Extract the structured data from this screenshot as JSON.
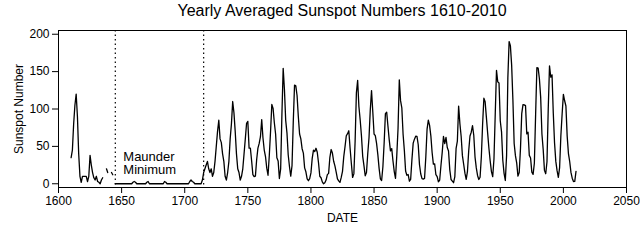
{
  "chart_data": {
    "type": "line",
    "title": "Yearly Averaged Sunspot Numbers 1610-2010",
    "xlabel": "DATE",
    "ylabel": "Sunspot Number",
    "color": "#000000",
    "grid": false,
    "xlim": [
      1600,
      2050
    ],
    "xticks": [
      1600,
      1650,
      1700,
      1750,
      1800,
      1850,
      1900,
      1950,
      2000,
      2050
    ],
    "ylim": [
      -5,
      205
    ],
    "yticks": [
      0,
      50,
      100,
      150,
      200
    ],
    "vlines": {
      "x": [
        1645,
        1715
      ],
      "line_style": "dotted"
    },
    "annotation": "Maunder\nMinimum",
    "x": [
      1610,
      1611,
      1612,
      1613,
      1614,
      1615,
      1616,
      1617,
      1618,
      1619,
      1620,
      1621,
      1622,
      1623,
      1624,
      1625,
      1626,
      1627,
      1628,
      1629,
      1630,
      1631,
      1632,
      1633,
      1634,
      1635,
      1636,
      1637,
      1638,
      1639,
      1640,
      1641,
      1642,
      1643,
      1644,
      1645,
      1646,
      1647,
      1648,
      1649,
      1650,
      1651,
      1652,
      1653,
      1654,
      1655,
      1656,
      1657,
      1658,
      1659,
      1660,
      1661,
      1662,
      1663,
      1664,
      1665,
      1666,
      1667,
      1668,
      1669,
      1670,
      1671,
      1672,
      1673,
      1674,
      1675,
      1676,
      1677,
      1678,
      1679,
      1680,
      1681,
      1682,
      1683,
      1684,
      1685,
      1686,
      1687,
      1688,
      1689,
      1690,
      1691,
      1692,
      1693,
      1694,
      1695,
      1696,
      1697,
      1698,
      1699,
      1700,
      1701,
      1702,
      1703,
      1704,
      1705,
      1706,
      1707,
      1708,
      1709,
      1710,
      1711,
      1712,
      1713,
      1714,
      1715,
      1716,
      1717,
      1718,
      1719,
      1720,
      1721,
      1722,
      1723,
      1724,
      1725,
      1726,
      1727,
      1728,
      1729,
      1730,
      1731,
      1732,
      1733,
      1734,
      1735,
      1736,
      1737,
      1738,
      1739,
      1740,
      1741,
      1742,
      1743,
      1744,
      1745,
      1746,
      1747,
      1748,
      1749,
      1750,
      1751,
      1752,
      1753,
      1754,
      1755,
      1756,
      1757,
      1758,
      1759,
      1760,
      1761,
      1762,
      1763,
      1764,
      1765,
      1766,
      1767,
      1768,
      1769,
      1770,
      1771,
      1772,
      1773,
      1774,
      1775,
      1776,
      1777,
      1778,
      1779,
      1780,
      1781,
      1782,
      1783,
      1784,
      1785,
      1786,
      1787,
      1788,
      1789,
      1790,
      1791,
      1792,
      1793,
      1794,
      1795,
      1796,
      1797,
      1798,
      1799,
      1800,
      1801,
      1802,
      1803,
      1804,
      1805,
      1806,
      1807,
      1808,
      1809,
      1810,
      1811,
      1812,
      1813,
      1814,
      1815,
      1816,
      1817,
      1818,
      1819,
      1820,
      1821,
      1822,
      1823,
      1824,
      1825,
      1826,
      1827,
      1828,
      1829,
      1830,
      1831,
      1832,
      1833,
      1834,
      1835,
      1836,
      1837,
      1838,
      1839,
      1840,
      1841,
      1842,
      1843,
      1844,
      1845,
      1846,
      1847,
      1848,
      1849,
      1850,
      1851,
      1852,
      1853,
      1854,
      1855,
      1856,
      1857,
      1858,
      1859,
      1860,
      1861,
      1862,
      1863,
      1864,
      1865,
      1866,
      1867,
      1868,
      1869,
      1870,
      1871,
      1872,
      1873,
      1874,
      1875,
      1876,
      1877,
      1878,
      1879,
      1880,
      1881,
      1882,
      1883,
      1884,
      1885,
      1886,
      1887,
      1888,
      1889,
      1890,
      1891,
      1892,
      1893,
      1894,
      1895,
      1896,
      1897,
      1898,
      1899,
      1900,
      1901,
      1902,
      1903,
      1904,
      1905,
      1906,
      1907,
      1908,
      1909,
      1910,
      1911,
      1912,
      1913,
      1914,
      1915,
      1916,
      1917,
      1918,
      1919,
      1920,
      1921,
      1922,
      1923,
      1924,
      1925,
      1926,
      1927,
      1928,
      1929,
      1930,
      1931,
      1932,
      1933,
      1934,
      1935,
      1936,
      1937,
      1938,
      1939,
      1940,
      1941,
      1942,
      1943,
      1944,
      1945,
      1946,
      1947,
      1948,
      1949,
      1950,
      1951,
      1952,
      1953,
      1954,
      1955,
      1956,
      1957,
      1958,
      1959,
      1960,
      1961,
      1962,
      1963,
      1964,
      1965,
      1966,
      1967,
      1968,
      1969,
      1970,
      1971,
      1972,
      1973,
      1974,
      1975,
      1976,
      1977,
      1978,
      1979,
      1980,
      1981,
      1982,
      1983,
      1984,
      1985,
      1986,
      1987,
      1988,
      1989,
      1990,
      1991,
      1992,
      1993,
      1994,
      1995,
      1996,
      1997,
      1998,
      1999,
      2000,
      2001,
      2002,
      2003,
      2004,
      2005,
      2006,
      2007,
      2008,
      2009,
      2010
    ],
    "values": [
      35,
      45,
      80,
      105,
      120,
      90,
      40,
      10,
      2,
      10,
      10,
      10,
      10,
      3,
      10,
      38,
      25,
      15,
      8,
      5,
      10,
      3,
      2,
      0,
      5,
      8,
      null,
      null,
      20,
      15,
      null,
      null,
      15,
      12,
      null,
      0,
      0,
      0,
      0,
      0,
      0,
      0,
      0,
      0,
      0,
      0,
      0,
      0,
      0,
      2,
      3,
      2,
      0,
      0,
      0,
      0,
      0,
      0,
      0,
      0,
      2,
      3,
      0,
      0,
      0,
      0,
      0,
      0,
      0,
      0,
      0,
      0,
      0,
      0,
      3,
      2,
      0,
      0,
      0,
      0,
      0,
      0,
      0,
      0,
      0,
      0,
      0,
      0,
      0,
      0,
      0,
      0,
      0,
      0,
      3,
      5,
      3,
      2,
      0,
      0,
      0,
      0,
      0,
      0,
      5,
      15,
      20,
      25,
      30,
      20,
      15,
      20,
      10,
      15,
      30,
      50,
      70,
      85,
      60,
      55,
      40,
      30,
      10,
      5,
      15,
      30,
      60,
      80,
      110,
      95,
      70,
      40,
      20,
      15,
      5,
      10,
      20,
      40,
      60,
      80.9,
      83.4,
      47.7,
      47.8,
      30.7,
      12.2,
      9.6,
      10.2,
      32.4,
      47.6,
      54,
      62.9,
      85.9,
      61.2,
      45.1,
      36.4,
      20.9,
      11.4,
      37.8,
      69.8,
      106.1,
      100.8,
      81.6,
      66.5,
      34.8,
      30.6,
      7,
      19.8,
      92.5,
      154.4,
      125.9,
      84.8,
      68.1,
      38.5,
      22.8,
      10.2,
      24.1,
      82.9,
      132,
      130.9,
      118.1,
      89.9,
      66.6,
      60,
      46.9,
      41,
      21.3,
      16,
      6.4,
      4.1,
      6.8,
      14.5,
      34,
      45,
      43.1,
      47.5,
      42.2,
      28.1,
      10.1,
      8.1,
      2.5,
      0,
      1.4,
      5,
      12.2,
      13.9,
      35.4,
      45.8,
      41.1,
      30.1,
      23.9,
      15.6,
      6.6,
      4,
      1.8,
      8.5,
      16.6,
      36.3,
      49.6,
      64.2,
      67,
      70.9,
      47.8,
      27.5,
      8.5,
      13.2,
      56.9,
      121.5,
      138.3,
      103.2,
      85.7,
      64.6,
      36.7,
      24.2,
      10.7,
      15,
      40.1,
      61.5,
      98.5,
      124.7,
      96.3,
      66.6,
      64.5,
      54.1,
      39,
      20.6,
      6.7,
      4.3,
      22.7,
      54.8,
      93.8,
      95.8,
      77.2,
      59.1,
      44,
      47,
      30.5,
      16.3,
      7.3,
      37.6,
      74,
      139,
      111.2,
      101.6,
      66.2,
      44.7,
      17,
      11.3,
      12.4,
      3.4,
      6,
      32.3,
      54.3,
      59.7,
      63.7,
      63.5,
      52.2,
      25.4,
      13.1,
      6.8,
      6.3,
      7.1,
      35.6,
      73,
      85.1,
      78,
      64,
      41.8,
      26.2,
      26.7,
      12.1,
      9.5,
      2.7,
      5,
      24.4,
      42,
      63.5,
      53.8,
      62,
      48.5,
      43.9,
      18.6,
      5.7,
      3.6,
      1.4,
      9.6,
      47.4,
      57.1,
      103.9,
      80.6,
      63.6,
      37.6,
      26.1,
      14.2,
      5.8,
      16.7,
      44.3,
      63.9,
      69,
      77.8,
      64.9,
      35.7,
      21.2,
      11.1,
      5.7,
      8.7,
      36.1,
      79.7,
      114.4,
      109.6,
      88.8,
      67.8,
      47.5,
      30.6,
      16.3,
      9.6,
      33.2,
      92.6,
      151.6,
      136.3,
      134.7,
      83.9,
      69.4,
      31.5,
      13.9,
      4.4,
      38,
      141.7,
      190.2,
      184.8,
      159,
      112.3,
      53.9,
      37.6,
      27.9,
      10.2,
      15.1,
      47,
      93.8,
      105.9,
      105.5,
      104.5,
      66.6,
      68.9,
      38,
      34.5,
      15.5,
      12.6,
      27.5,
      92.5,
      155.4,
      154.6,
      140.4,
      115.9,
      66.6,
      45.9,
      17.9,
      13.4,
      29.4,
      100.2,
      157.6,
      142.6,
      145.7,
      94.3,
      54.6,
      29.9,
      17.5,
      8.6,
      21.5,
      64.3,
      93.3,
      119.6,
      111,
      104,
      63.7,
      40.4,
      29.8,
      15.2,
      7.5,
      2.9,
      3.1,
      16.5
    ]
  }
}
